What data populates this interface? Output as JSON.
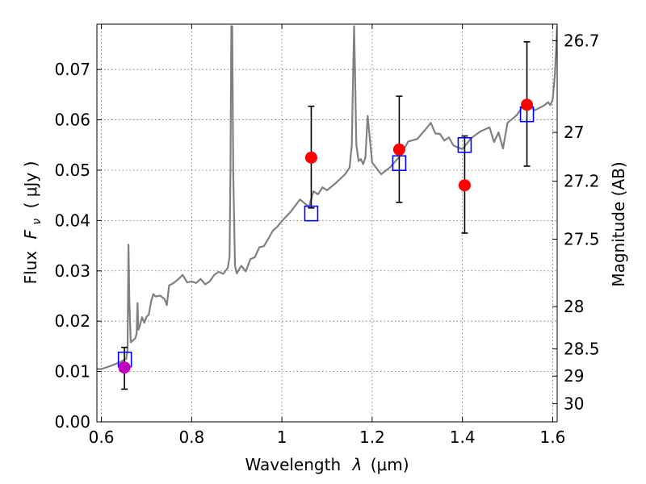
{
  "chart_data": {
    "type": "scatter",
    "xlabel_prefix": "Wavelength",
    "xlabel_symbol": "λ",
    "xlabel_unit": "(μm)",
    "ylabel_prefix": "Flux",
    "ylabel_symbol": "F",
    "ylabel_subscript": "ν",
    "ylabel_unit": "( μJy )",
    "y2label": "Magnitude (AB)",
    "xlim": [
      0.59,
      1.61
    ],
    "ylim": [
      0.0,
      0.079
    ],
    "xticks": [
      0.6,
      0.8,
      1.0,
      1.2,
      1.4,
      1.6
    ],
    "xtick_labels": [
      "0.6",
      "0.8",
      "1",
      "1.2",
      "1.4",
      "1.6"
    ],
    "yticks": [
      0.0,
      0.01,
      0.02,
      0.03,
      0.04,
      0.05,
      0.06,
      0.07
    ],
    "ytick_labels": [
      "0.00",
      "0.01",
      "0.02",
      "0.03",
      "0.04",
      "0.05",
      "0.06",
      "0.07"
    ],
    "y2ticks": [
      {
        "label": "26.7",
        "flux": 0.0757
      },
      {
        "label": "27",
        "flux": 0.0575
      },
      {
        "label": "27.2",
        "flux": 0.0478
      },
      {
        "label": "27.5",
        "flux": 0.0363
      },
      {
        "label": "28",
        "flux": 0.0229
      },
      {
        "label": "28.5",
        "flux": 0.0145
      },
      {
        "label": "29",
        "flux": 0.0091
      },
      {
        "label": "30",
        "flux": 0.0036
      }
    ],
    "grid": true,
    "colors": {
      "sed": "#808080",
      "observed": "#ff0000",
      "observed_alt": "#bf00bf",
      "model": "#0000ff",
      "errorbar": "#000000"
    },
    "series": [
      {
        "kind": "line",
        "x": [
          0.59,
          0.6,
          0.62,
          0.64,
          0.65,
          0.655,
          0.658,
          0.66,
          0.662,
          0.665,
          0.67,
          0.675,
          0.678,
          0.68,
          0.682,
          0.685,
          0.69,
          0.695,
          0.7,
          0.705,
          0.71,
          0.715,
          0.72,
          0.73,
          0.74,
          0.745,
          0.75,
          0.76,
          0.77,
          0.78,
          0.79,
          0.8,
          0.81,
          0.82,
          0.83,
          0.84,
          0.85,
          0.86,
          0.87,
          0.88,
          0.884,
          0.886,
          0.888,
          0.89,
          0.892,
          0.896,
          0.9,
          0.91,
          0.92,
          0.93,
          0.94,
          0.95,
          0.96,
          0.97,
          0.98,
          0.99,
          1.0,
          1.02,
          1.04,
          1.06,
          1.07,
          1.08,
          1.09,
          1.1,
          1.12,
          1.14,
          1.15,
          1.155,
          1.158,
          1.16,
          1.162,
          1.165,
          1.17,
          1.175,
          1.18,
          1.185,
          1.19,
          1.2,
          1.22,
          1.24,
          1.26,
          1.27,
          1.28,
          1.3,
          1.32,
          1.33,
          1.34,
          1.35,
          1.36,
          1.37,
          1.38,
          1.4,
          1.42,
          1.44,
          1.46,
          1.47,
          1.48,
          1.49,
          1.5,
          1.52,
          1.54,
          1.56,
          1.58,
          1.59,
          1.595,
          1.6,
          1.605,
          1.61
        ],
        "y": [
          0.0105,
          0.0105,
          0.0111,
          0.0118,
          0.0123,
          0.0125,
          0.0145,
          0.0352,
          0.024,
          0.0158,
          0.0162,
          0.0166,
          0.0175,
          0.0236,
          0.0183,
          0.019,
          0.0208,
          0.0197,
          0.0209,
          0.0213,
          0.0239,
          0.0254,
          0.0249,
          0.0251,
          0.0244,
          0.0232,
          0.0271,
          0.0276,
          0.0283,
          0.0292,
          0.0277,
          0.0279,
          0.0276,
          0.0284,
          0.0273,
          0.0279,
          0.0292,
          0.0298,
          0.0294,
          0.0306,
          0.0328,
          0.05,
          0.0786,
          0.0786,
          0.05,
          0.031,
          0.0295,
          0.031,
          0.0299,
          0.0323,
          0.0327,
          0.0347,
          0.0349,
          0.0364,
          0.038,
          0.0388,
          0.0399,
          0.0418,
          0.0442,
          0.0427,
          0.0458,
          0.0452,
          0.0466,
          0.046,
          0.0475,
          0.0492,
          0.0505,
          0.055,
          0.07,
          0.0786,
          0.07,
          0.055,
          0.0518,
          0.0522,
          0.0512,
          0.0525,
          0.0608,
          0.0515,
          0.0492,
          0.0506,
          0.0526,
          0.0541,
          0.0557,
          0.0562,
          0.0583,
          0.0594,
          0.0573,
          0.0572,
          0.0559,
          0.0565,
          0.0549,
          0.0542,
          0.0564,
          0.0577,
          0.0585,
          0.0556,
          0.0575,
          0.0543,
          0.0594,
          0.0609,
          0.0634,
          0.0619,
          0.0628,
          0.0635,
          0.0629,
          0.064,
          0.069,
          0.0786
        ]
      },
      {
        "kind": "model",
        "x": [
          0.652,
          1.065,
          1.26,
          1.405,
          1.543
        ],
        "y": [
          0.0124,
          0.0414,
          0.0514,
          0.055,
          0.0611
        ]
      },
      {
        "kind": "observed",
        "x": [
          0.651,
          1.065,
          1.26,
          1.405,
          1.543
        ],
        "y": [
          0.0108,
          0.0525,
          0.0541,
          0.047,
          0.063
        ],
        "yerr_low": [
          0.0065,
          0.0425,
          0.0436,
          0.0375,
          0.0508
        ],
        "yerr_high": [
          0.0148,
          0.0627,
          0.0647,
          0.0568,
          0.0755
        ]
      }
    ]
  }
}
